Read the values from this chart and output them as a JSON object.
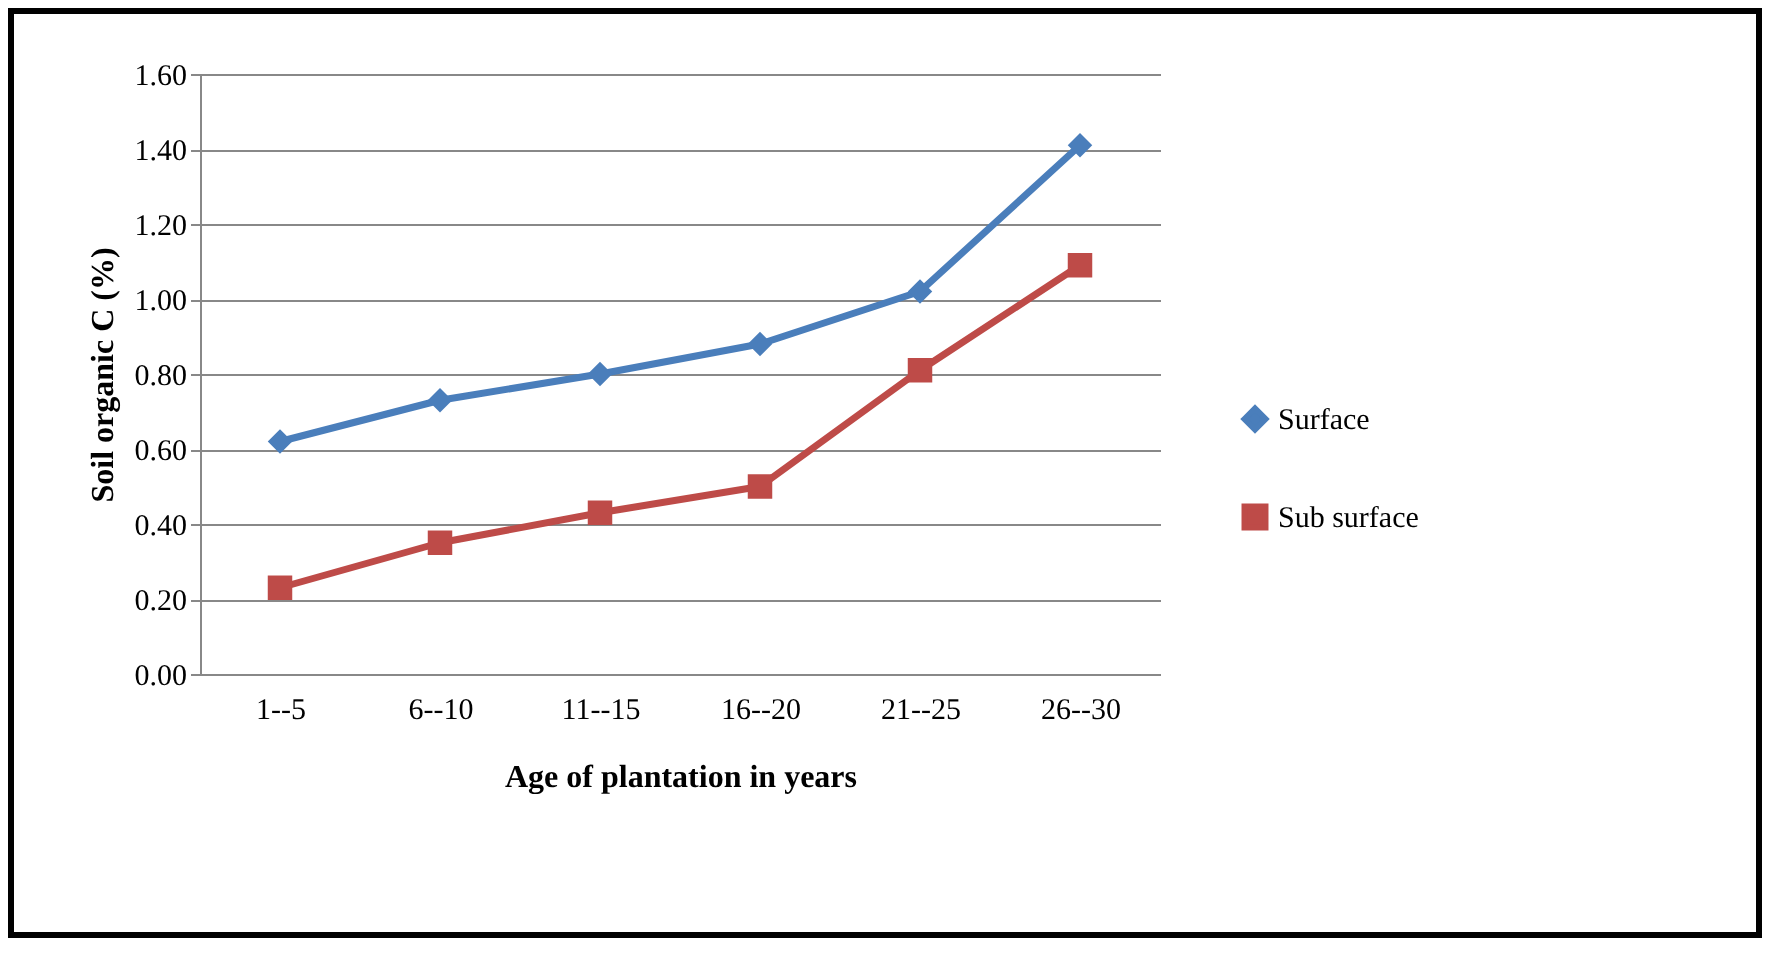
{
  "chart_data": {
    "type": "line",
    "xlabel": "Age of plantation in years",
    "ylabel": "Soil organic C   (%)",
    "categories": [
      "1--5",
      "6--10",
      "11--15",
      "16--20",
      "21--25",
      "26--30"
    ],
    "series": [
      {
        "name": "Surface",
        "color": "#4a7ebb",
        "marker": "diamond",
        "values": [
          0.62,
          0.73,
          0.8,
          0.88,
          1.02,
          1.41
        ]
      },
      {
        "name": "Sub surface",
        "color": "#be4b48",
        "marker": "square",
        "values": [
          0.23,
          0.35,
          0.43,
          0.5,
          0.81,
          1.09
        ]
      }
    ],
    "ylim": [
      0,
      1.6
    ],
    "yticks": [
      {
        "value": 0,
        "label": "0.00"
      },
      {
        "value": 0.2,
        "label": "0.20"
      },
      {
        "value": 0.4,
        "label": "0.40"
      },
      {
        "value": 0.6,
        "label": "0.60"
      },
      {
        "value": 0.8,
        "label": "0.80"
      },
      {
        "value": 1.0,
        "label": "1.00"
      },
      {
        "value": 1.2,
        "label": "1.20"
      },
      {
        "value": 1.4,
        "label": "1.40"
      },
      {
        "value": 1.6,
        "label": "1.60"
      }
    ],
    "grid": "y",
    "legend": "right",
    "line_style": "solid"
  }
}
